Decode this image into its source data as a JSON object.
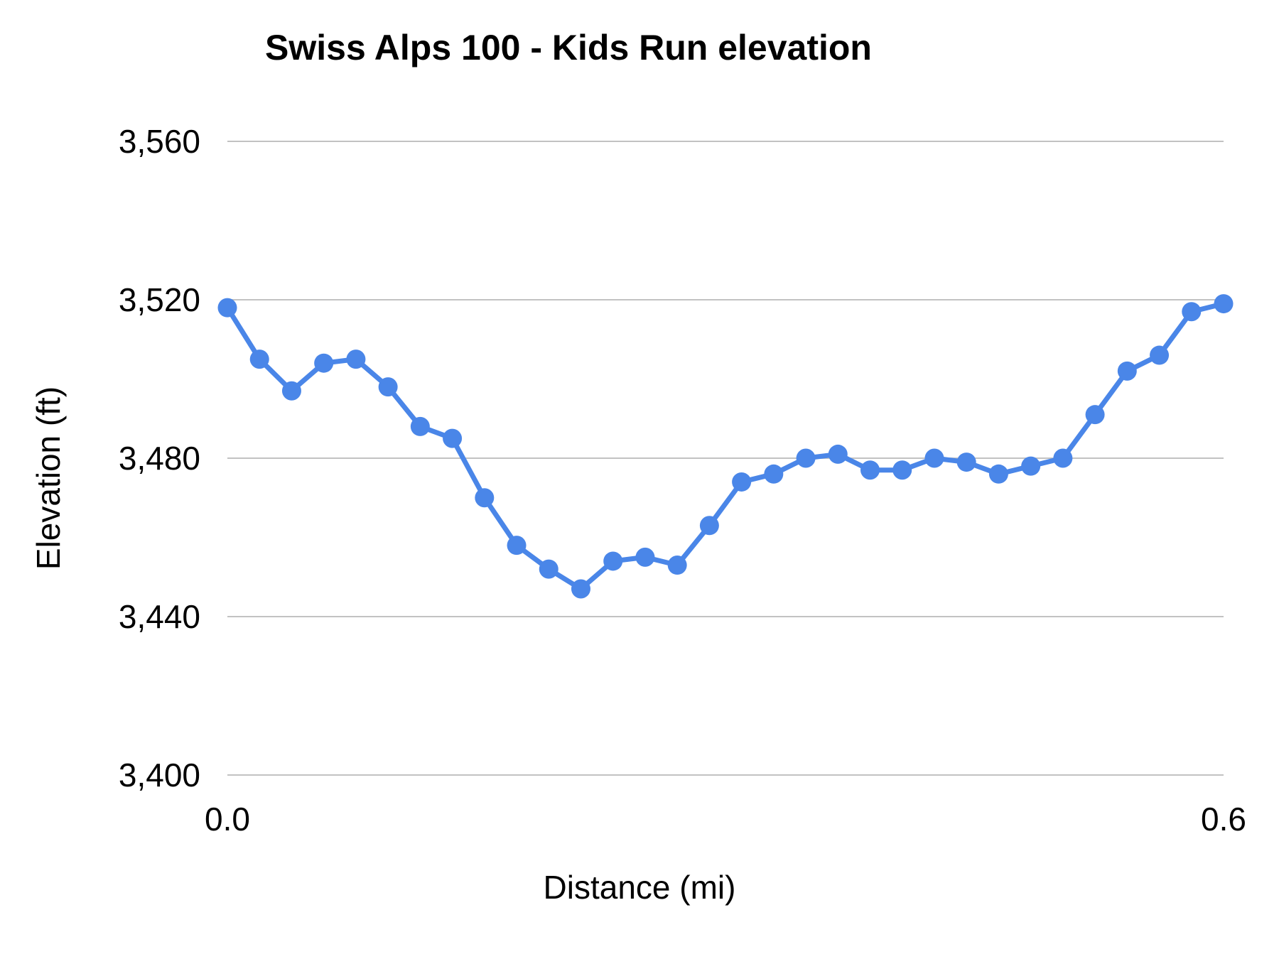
{
  "chart": {
    "title": "Swiss Alps 100 - Kids Run elevation",
    "xlabel": "Distance (mi)",
    "ylabel": "Elevation (ft)"
  },
  "chart_data": {
    "type": "line",
    "title": "Swiss Alps 100 - Kids Run elevation",
    "xlabel": "Distance (mi)",
    "ylabel": "Elevation (ft)",
    "legend": "none",
    "grid": "horizontal-only",
    "marker": "circle",
    "series_color": "#4a86e8",
    "gridline_color": "#c2c2c2",
    "text_color": "#000000",
    "xlim": [
      0.0,
      0.6
    ],
    "ylim": [
      3400,
      3560
    ],
    "x": [
      0.0,
      0.019,
      0.039,
      0.058,
      0.077,
      0.097,
      0.116,
      0.135,
      0.155,
      0.174,
      0.194,
      0.213,
      0.232,
      0.252,
      0.271,
      0.29,
      0.31,
      0.329,
      0.348,
      0.368,
      0.387,
      0.406,
      0.426,
      0.445,
      0.465,
      0.484,
      0.503,
      0.523,
      0.542,
      0.561,
      0.581,
      0.6
    ],
    "y": [
      3518,
      3505,
      3497,
      3504,
      3505,
      3498,
      3488,
      3485,
      3470,
      3458,
      3452,
      3447,
      3454,
      3455,
      3453,
      3463,
      3474,
      3476,
      3480,
      3481,
      3477,
      3477,
      3480,
      3479,
      3476,
      3478,
      3480,
      3491,
      3502,
      3506,
      3517,
      3519
    ],
    "y_ticks": {
      "values": [
        3400,
        3440,
        3480,
        3520,
        3560
      ],
      "labels": [
        "3,400",
        "3,440",
        "3,480",
        "3,520",
        "3,560"
      ]
    },
    "x_ticks": {
      "point_indices": [
        0,
        31
      ],
      "labels": [
        "0.0",
        "0.6"
      ]
    }
  }
}
